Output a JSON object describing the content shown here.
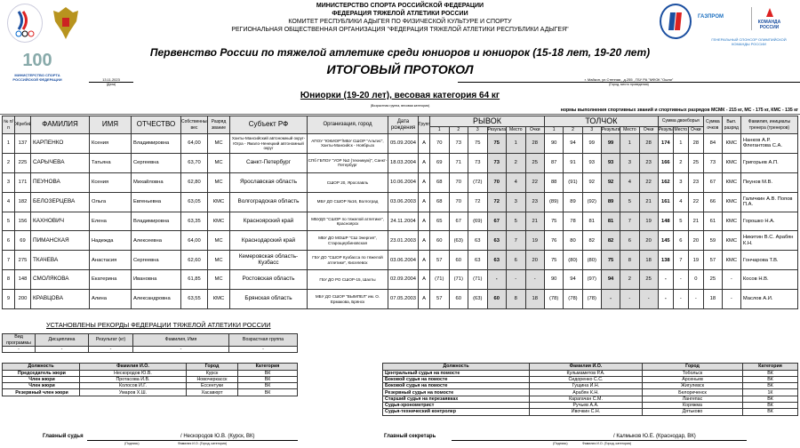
{
  "header": {
    "line1": "МИНИСТЕРСТВО СПОРТА  РОССИЙСКОЙ ФЕДЕРАЦИИ",
    "line2": "ФЕДЕРАЦИЯ ТЯЖЕЛОЙ АТЛЕТИКИ РОССИИ",
    "line3": "КОМИТЕТ РЕСПУБЛИКИ АДЫГЕЯ ПО ФИЗИЧЕСКОЙ КУЛЬТУРЕ И СПОРТУ",
    "line4": "РЕГИОНАЛЬНАЯ ОБЩЕСТВЕННАЯ ОРГАНИЗАЦИЯ \"ФЕДЕРАЦИЯ ТЯЖЕЛОЙ АТЛЕТИКИ РЕСПУБЛИКИ АДЫГЕЯ\"",
    "event": "Первенство России по тяжелой атлетике среди юниоров и юниорок (15-18 лет, 19-20 лет)",
    "title": "ИТОГОВЫЙ ПРОТОКОЛ",
    "date": "13.11.2023",
    "date_caption": "(Дата)",
    "place": "г. Майкоп, ул.Степная , д.255 , ГБУ РА \"МФОК \"Ошпи\"",
    "place_caption": "(Город, место проведения)",
    "category": "Юниорки (19-20 лет), весовая категория 64 кг",
    "category_caption": "(Возрастная группа, весовая категория)",
    "norms": "нормы выполнения спортивных званий и спортивных разрядов  МСМК - 215 кг, МС - 175 кг, КМС - 135 кг",
    "logo_left1": "Олимпийский комитет России",
    "logo_right_sponsor": "ГАЗПРОМ",
    "logo_right_team": "КОМАНДА РОССИИ",
    "sponsor_caption": "ГЕНЕРАЛЬНЫЙ СПОНСОР ОЛИМПИЙСКОЙ КОМАНДЫ РОССИИ",
    "logo_100": "100 лет",
    "ministry_caption": "МИНИСТЕРСТВО СПОРТА РОССИЙСКОЙ ФЕДЕРАЦИИ"
  },
  "columns": {
    "num": "№ п/п",
    "lot": "Жребий",
    "surname": "ФАМИЛИЯ",
    "name": "ИМЯ",
    "patronymic": "ОТЧЕСТВО",
    "bw": "Собственный вес",
    "rank": "Разряд звание",
    "region": "Субъект РФ",
    "org": "Организация, город",
    "dob": "Дата рождения",
    "group": "Группа",
    "snatch": "РЫВОК",
    "cj": "ТОЛЧОК",
    "total": "Сумма двоеборья",
    "points_sum": "Сумма очков",
    "rank_done": "Вып. разряд",
    "coach": "Фамилия, инициалы тренера (тренеров)",
    "a1": "1",
    "a2": "2",
    "a3": "3",
    "result": "Результат",
    "place": "Место",
    "pts": "Очки"
  },
  "rows": [
    {
      "n": "1",
      "lot": "137",
      "surname": "КАРПЕНКО",
      "name": "Ксения",
      "patr": "Владимировна",
      "bw": "64,00",
      "rank": "МС",
      "region": "Ханты-Мансийский автономный округ-Югра - Ямало-Ненецкий автономный округ",
      "org": "АПОУ \"ЮКИОР\"/МБУ СШОР \"Альтис\", Ханты-Мансийск - Ноябрьск",
      "dob": "05.09.2004",
      "group": "А",
      "s": [
        "70",
        "73",
        "75",
        "75",
        "1",
        "28"
      ],
      "c": [
        "90",
        "94",
        "99",
        "99",
        "1",
        "28"
      ],
      "t": [
        "174",
        "1",
        "28"
      ],
      "sum": "84",
      "done": "КМС",
      "coach": "Нанков А.Р. Флегантова С.А."
    },
    {
      "n": "2",
      "lot": "225",
      "surname": "САРЫЧЕВА",
      "name": "Татьяна",
      "patr": "Сергеевна",
      "bw": "63,70",
      "rank": "МС",
      "region": "Санкт-Петербург",
      "org": "СПб ГБПОУ \"УОР №2 (техникум)\", Санкт-Петербург",
      "dob": "18.03.2004",
      "group": "А",
      "s": [
        "69",
        "71",
        "73",
        "73",
        "2",
        "25"
      ],
      "c": [
        "87",
        "91",
        "93",
        "93",
        "3",
        "23"
      ],
      "t": [
        "166",
        "2",
        "25"
      ],
      "sum": "73",
      "done": "КМС",
      "coach": "Григорьев А.П."
    },
    {
      "n": "3",
      "lot": "171",
      "surname": "ПЕУНОВА",
      "name": "Ксения",
      "patr": "Михайловна",
      "bw": "62,80",
      "rank": "МС",
      "region": "Ярославская область",
      "org": "СШОР 20, Ярославль",
      "dob": "10.06.2004",
      "group": "А",
      "s": [
        "68",
        "70",
        "(72)",
        "70",
        "4",
        "22"
      ],
      "c": [
        "88",
        "(91)",
        "92",
        "92",
        "4",
        "22"
      ],
      "t": [
        "162",
        "3",
        "23"
      ],
      "sum": "67",
      "done": "КМС",
      "coach": "Пеунов М.В."
    },
    {
      "n": "4",
      "lot": "182",
      "surname": "БЕЛОЗЕРЦЕВА",
      "name": "Ольга",
      "patr": "Евгеньевна",
      "bw": "63,05",
      "rank": "КМС",
      "region": "Волгоградская область",
      "org": "МБУ ДО СШОР №16, Волгоград",
      "dob": "03.06.2003",
      "group": "А",
      "s": [
        "68",
        "70",
        "72",
        "72",
        "3",
        "23"
      ],
      "c": [
        "(89)",
        "89",
        "(92)",
        "89",
        "5",
        "21"
      ],
      "t": [
        "161",
        "4",
        "22"
      ],
      "sum": "66",
      "done": "КМС",
      "coach": "Галичкин А.В. Попов П.А."
    },
    {
      "n": "5",
      "lot": "156",
      "surname": "КАХНОВИЧ",
      "name": "Елена",
      "patr": "Владимировна",
      "bw": "63,35",
      "rank": "КМС",
      "region": "Красноярский край",
      "org": "МБУДО \"СШОР по тяжелой атлетике\", Красноярск",
      "dob": "24.11.2004",
      "group": "А",
      "s": [
        "65",
        "67",
        "(69)",
        "67",
        "5",
        "21"
      ],
      "c": [
        "75",
        "78",
        "81",
        "81",
        "7",
        "19"
      ],
      "t": [
        "148",
        "5",
        "21"
      ],
      "sum": "61",
      "done": "КМС",
      "coach": "Горошко Н.А."
    },
    {
      "n": "6",
      "lot": "69",
      "surname": "ПИМАНСКАЯ",
      "name": "Надежда",
      "patr": "Алексеевна",
      "bw": "64,00",
      "rank": "МС",
      "region": "Краснодарский край",
      "org": "МБУ ДО МОШР \"СШ Энергия\", Старощербиновская",
      "dob": "23.01.2003",
      "group": "А",
      "s": [
        "60",
        "(63)",
        "63",
        "63",
        "7",
        "19"
      ],
      "c": [
        "76",
        "80",
        "82",
        "82",
        "6",
        "20"
      ],
      "t": [
        "145",
        "6",
        "20"
      ],
      "sum": "59",
      "done": "КМС",
      "coach": "Никитин В.С. Арабян К.Н."
    },
    {
      "n": "7",
      "lot": "275",
      "surname": "ТКАЧЕВА",
      "name": "Анастасия",
      "patr": "Сергеевна",
      "bw": "62,60",
      "rank": "МС",
      "region": "Кемеровская область-Кузбасс",
      "org": "ГБУ ДО \"СШОР Кузбасса по тяжелой атлетике\", Киселевск",
      "dob": "03.06.2004",
      "group": "А",
      "s": [
        "57",
        "60",
        "63",
        "63",
        "6",
        "20"
      ],
      "c": [
        "75",
        "(80)",
        "(80)",
        "75",
        "8",
        "18"
      ],
      "t": [
        "138",
        "7",
        "19"
      ],
      "sum": "57",
      "done": "КМС",
      "coach": "Гончарова Т.В."
    },
    {
      "n": "8",
      "lot": "148",
      "surname": "СМОЛЯКОВА",
      "name": "Екатерина",
      "patr": "Ивановна",
      "bw": "61,85",
      "rank": "МС",
      "region": "Ростовская область",
      "org": "ГБУ ДО РО СШОР-15, Шахты",
      "dob": "02.09.2004",
      "group": "А",
      "s": [
        "(71)",
        "(71)",
        "(71)",
        "-",
        "-",
        "-"
      ],
      "c": [
        "90",
        "94",
        "(97)",
        "94",
        "2",
        "25"
      ],
      "t": [
        "-",
        "-",
        "0"
      ],
      "sum": "25",
      "done": "-",
      "coach": "Косов Н.В."
    },
    {
      "n": "9",
      "lot": "200",
      "surname": "КРАВЦОВА",
      "name": "Алина",
      "patr": "Александровна",
      "bw": "63,55",
      "rank": "КМС",
      "region": "Брянская область",
      "org": "МБУ ДО СШОР \"ВЫМПЕЛ\" им. О. Ермакова, Брянск",
      "dob": "07.05.2003",
      "group": "А",
      "s": [
        "57",
        "60",
        "(63)",
        "60",
        "8",
        "18"
      ],
      "c": [
        "(78)",
        "(78)",
        "(78)",
        "-",
        "-",
        "-"
      ],
      "t": [
        "-",
        "-",
        "-"
      ],
      "sum": "18",
      "done": "-",
      "coach": "Маслов А.И."
    }
  ],
  "records": {
    "title": "УСТАНОВЛЕНЫ РЕКОРДЫ ФЕДЕРАЦИИ ТЯЖЕЛОЙ АТЛЕТИКИ РОССИИ",
    "headers": [
      "Вид программы",
      "Дисциплина",
      "Результат (кг)",
      "Фамилия, Имя",
      "Возрастная группа"
    ],
    "row": [
      "-",
      "-",
      "-",
      "-",
      "-"
    ]
  },
  "jury": {
    "headers": [
      "Должность",
      "Фамилия И.О.",
      "Город",
      "Категория"
    ],
    "rows": [
      [
        "Председатель жюри",
        "Нескородов Ю.В.",
        "Курск",
        "ВК"
      ],
      [
        "Член жюри",
        "Протасова И.В.",
        "Новочеркасск",
        "ВК"
      ],
      [
        "Член жюри",
        "Колосов И.Г.",
        "Ессентуки",
        "ВК"
      ],
      [
        "Резервный член жюри",
        "Умаров Х.Ш.",
        "Хасавюрт",
        "ВК"
      ]
    ]
  },
  "judges": {
    "headers": [
      "Должность",
      "Фамилия И.О.",
      "Город",
      "Категория"
    ],
    "rows": [
      [
        "Центральный судья на помосте",
        "Кульмаметов Р.А.",
        "Тобольск",
        "ВК"
      ],
      [
        "Боковой судья на помосте",
        "Сидоренко С.С.",
        "Арсеньев",
        "ВК"
      ],
      [
        "Боковой судья на помосте",
        "Гущина И.Н.",
        "Жигулевск",
        "ВК"
      ],
      [
        "Резервный судья на помосте",
        "Арабян К.Н.",
        "Белореченск",
        "1К"
      ],
      [
        "Старший судья на перезаявках",
        "Карагачан С.М.",
        "Лангепас",
        "ВК"
      ],
      [
        "Судья-хронометрист",
        "Ручьев А.А.",
        "Коряжма",
        "ВК"
      ],
      [
        "Судья-технический контролер",
        "Ивочкин С.Н.",
        "Дятьково",
        "ВК"
      ]
    ]
  },
  "signatures": {
    "chief_judge_label": "Главный судья",
    "chief_judge": "/ Нескородов Ю.В. (Курск, ВК)",
    "chief_secretary_label": "Главный секретарь",
    "chief_secretary": "/ Калмыков Ю.Е. (Краснодар, ВК)",
    "sign_caption": "(Подпись)",
    "name_caption": "Фамилия И.О. (Город, категория)"
  }
}
